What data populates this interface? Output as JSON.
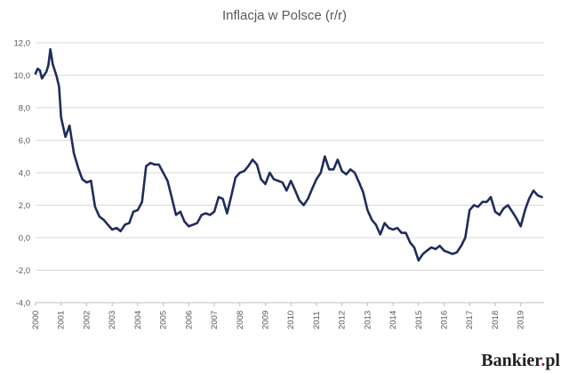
{
  "chart_data": {
    "type": "line",
    "title": "Inflacja w Polsce (r/r)",
    "xlabel": "",
    "ylabel": "",
    "ylim": [
      -4,
      12
    ],
    "y_ticks": [
      "12,0",
      "10,0",
      "8,0",
      "6,0",
      "4,0",
      "2,0",
      "0,0",
      "-2,0",
      "-4,0"
    ],
    "y_tick_values": [
      12,
      10,
      8,
      6,
      4,
      2,
      0,
      -2,
      -4
    ],
    "x_tick_labels": [
      "2000",
      "2001",
      "2002",
      "2003",
      "2004",
      "2005",
      "2006",
      "2007",
      "2008",
      "2009",
      "2010",
      "2011",
      "2012",
      "2013",
      "2014",
      "2015",
      "2016",
      "2017",
      "2018",
      "2019"
    ],
    "grid": true,
    "legend": "none",
    "line_color": "#1f2d5c",
    "series": [
      {
        "x": [
          2000.0,
          2000.08,
          2000.17,
          2000.25,
          2000.33,
          2000.42,
          2000.5,
          2000.58,
          2000.67,
          2000.75,
          2000.83,
          2000.92,
          2001.0,
          2001.17,
          2001.33,
          2001.5,
          2001.67,
          2001.83,
          2002.0,
          2002.17,
          2002.33,
          2002.5,
          2002.67,
          2002.83,
          2003.0,
          2003.17,
          2003.33,
          2003.5,
          2003.67,
          2003.83,
          2004.0,
          2004.17,
          2004.33,
          2004.5,
          2004.67,
          2004.83,
          2005.0,
          2005.17,
          2005.33,
          2005.5,
          2005.67,
          2005.83,
          2006.0,
          2006.17,
          2006.33,
          2006.5,
          2006.67,
          2006.83,
          2007.0,
          2007.17,
          2007.33,
          2007.5,
          2007.67,
          2007.83,
          2008.0,
          2008.17,
          2008.33,
          2008.5,
          2008.67,
          2008.83,
          2009.0,
          2009.17,
          2009.33,
          2009.5,
          2009.67,
          2009.83,
          2010.0,
          2010.17,
          2010.33,
          2010.5,
          2010.67,
          2010.83,
          2011.0,
          2011.17,
          2011.33,
          2011.5,
          2011.67,
          2011.83,
          2012.0,
          2012.17,
          2012.33,
          2012.5,
          2012.67,
          2012.83,
          2013.0,
          2013.17,
          2013.33,
          2013.5,
          2013.67,
          2013.83,
          2014.0,
          2014.17,
          2014.33,
          2014.5,
          2014.67,
          2014.83,
          2015.0,
          2015.17,
          2015.33,
          2015.5,
          2015.67,
          2015.83,
          2016.0,
          2016.17,
          2016.33,
          2016.5,
          2016.67,
          2016.83,
          2017.0,
          2017.17,
          2017.33,
          2017.5,
          2017.67,
          2017.83,
          2018.0,
          2018.17,
          2018.33,
          2018.5,
          2018.67,
          2018.83,
          2019.0,
          2019.17,
          2019.33,
          2019.5,
          2019.67,
          2019.83
        ],
        "y": [
          10.1,
          10.4,
          10.3,
          9.8,
          10.0,
          10.2,
          10.6,
          11.6,
          10.7,
          10.3,
          9.9,
          9.3,
          7.4,
          6.2,
          6.9,
          5.2,
          4.3,
          3.6,
          3.4,
          3.5,
          1.9,
          1.3,
          1.1,
          0.8,
          0.5,
          0.6,
          0.4,
          0.8,
          0.9,
          1.6,
          1.7,
          2.2,
          4.4,
          4.6,
          4.5,
          4.5,
          4.0,
          3.5,
          2.5,
          1.4,
          1.6,
          1.0,
          0.7,
          0.8,
          0.9,
          1.4,
          1.5,
          1.4,
          1.6,
          2.5,
          2.4,
          1.5,
          2.6,
          3.7,
          4.0,
          4.1,
          4.4,
          4.8,
          4.5,
          3.6,
          3.3,
          4.0,
          3.6,
          3.5,
          3.4,
          2.9,
          3.5,
          2.9,
          2.3,
          2.0,
          2.4,
          3.0,
          3.6,
          4.0,
          5.0,
          4.2,
          4.2,
          4.8,
          4.1,
          3.9,
          4.2,
          4.0,
          3.4,
          2.8,
          1.7,
          1.1,
          0.8,
          0.2,
          0.9,
          0.6,
          0.5,
          0.6,
          0.3,
          0.3,
          -0.3,
          -0.6,
          -1.4,
          -1.0,
          -0.8,
          -0.6,
          -0.7,
          -0.5,
          -0.8,
          -0.9,
          -1.0,
          -0.9,
          -0.5,
          0.0,
          1.7,
          2.0,
          1.9,
          2.2,
          2.2,
          2.5,
          1.6,
          1.4,
          1.8,
          2.0,
          1.6,
          1.2,
          0.7,
          1.7,
          2.4,
          2.9,
          2.6,
          2.5
        ]
      }
    ]
  },
  "watermark": {
    "brand": "Bankier",
    "suffix": ".",
    "tld": "pl"
  }
}
